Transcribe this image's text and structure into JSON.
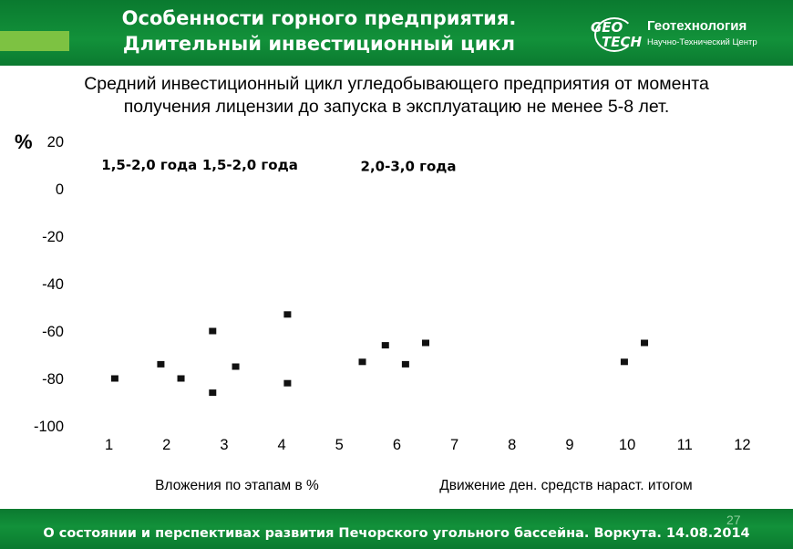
{
  "header": {
    "title_line1": "Особенности горного предприятия.",
    "title_line2": "Длительный инвестиционный цикл"
  },
  "logo": {
    "mark_line1": "GEO",
    "mark_line2": "TECH",
    "name": "Геотехнология",
    "subtitle": "Научно-Технический Центр"
  },
  "subtitle": {
    "line1": "Средний инвестиционный цикл угледобывающего предприятия от момента",
    "line2": "получения лицензии до запуска в эксплуатацию не менее 5-8 лет."
  },
  "chart_data": {
    "type": "scatter",
    "ylabel": "%",
    "ylim": [
      -100,
      20
    ],
    "yticks": [
      20,
      0,
      -20,
      -40,
      -60,
      -80,
      -100
    ],
    "xlim": [
      0.5,
      12.5
    ],
    "categories": [
      "1",
      "2",
      "3",
      "4",
      "5",
      "6",
      "7",
      "8",
      "9",
      "10",
      "11",
      "12"
    ],
    "phase_labels": [
      {
        "text": "1,5-2,0 года",
        "x": 1.7,
        "y": 8
      },
      {
        "text": "1,5-2,0 года",
        "x": 3.45,
        "y": 8
      },
      {
        "text": "2,0-3,0 года",
        "x": 6.2,
        "y": 7.5
      }
    ],
    "points": [
      {
        "x": 1.1,
        "y": -80
      },
      {
        "x": 1.9,
        "y": -74
      },
      {
        "x": 2.25,
        "y": -80
      },
      {
        "x": 2.8,
        "y": -60
      },
      {
        "x": 2.8,
        "y": -86
      },
      {
        "x": 3.2,
        "y": -75
      },
      {
        "x": 4.1,
        "y": -53
      },
      {
        "x": 4.1,
        "y": -82
      },
      {
        "x": 5.4,
        "y": -73
      },
      {
        "x": 5.8,
        "y": -66
      },
      {
        "x": 6.15,
        "y": -74
      },
      {
        "x": 6.5,
        "y": -65
      },
      {
        "x": 9.95,
        "y": -73
      },
      {
        "x": 10.3,
        "y": -65
      }
    ],
    "legend": [
      "Вложения по этапам в %",
      "Движение ден. средств нараст. итогом"
    ],
    "legend_placement": "bottom",
    "grid": false
  },
  "footer": {
    "text": "О состоянии и перспективах развития Печорского угольного бассейна. Воркута. 14.08.2014",
    "page_number": "27"
  },
  "colors": {
    "header_green": "#12913a",
    "accent_green": "#7dc242",
    "text": "#000000",
    "marker": "#111111"
  }
}
